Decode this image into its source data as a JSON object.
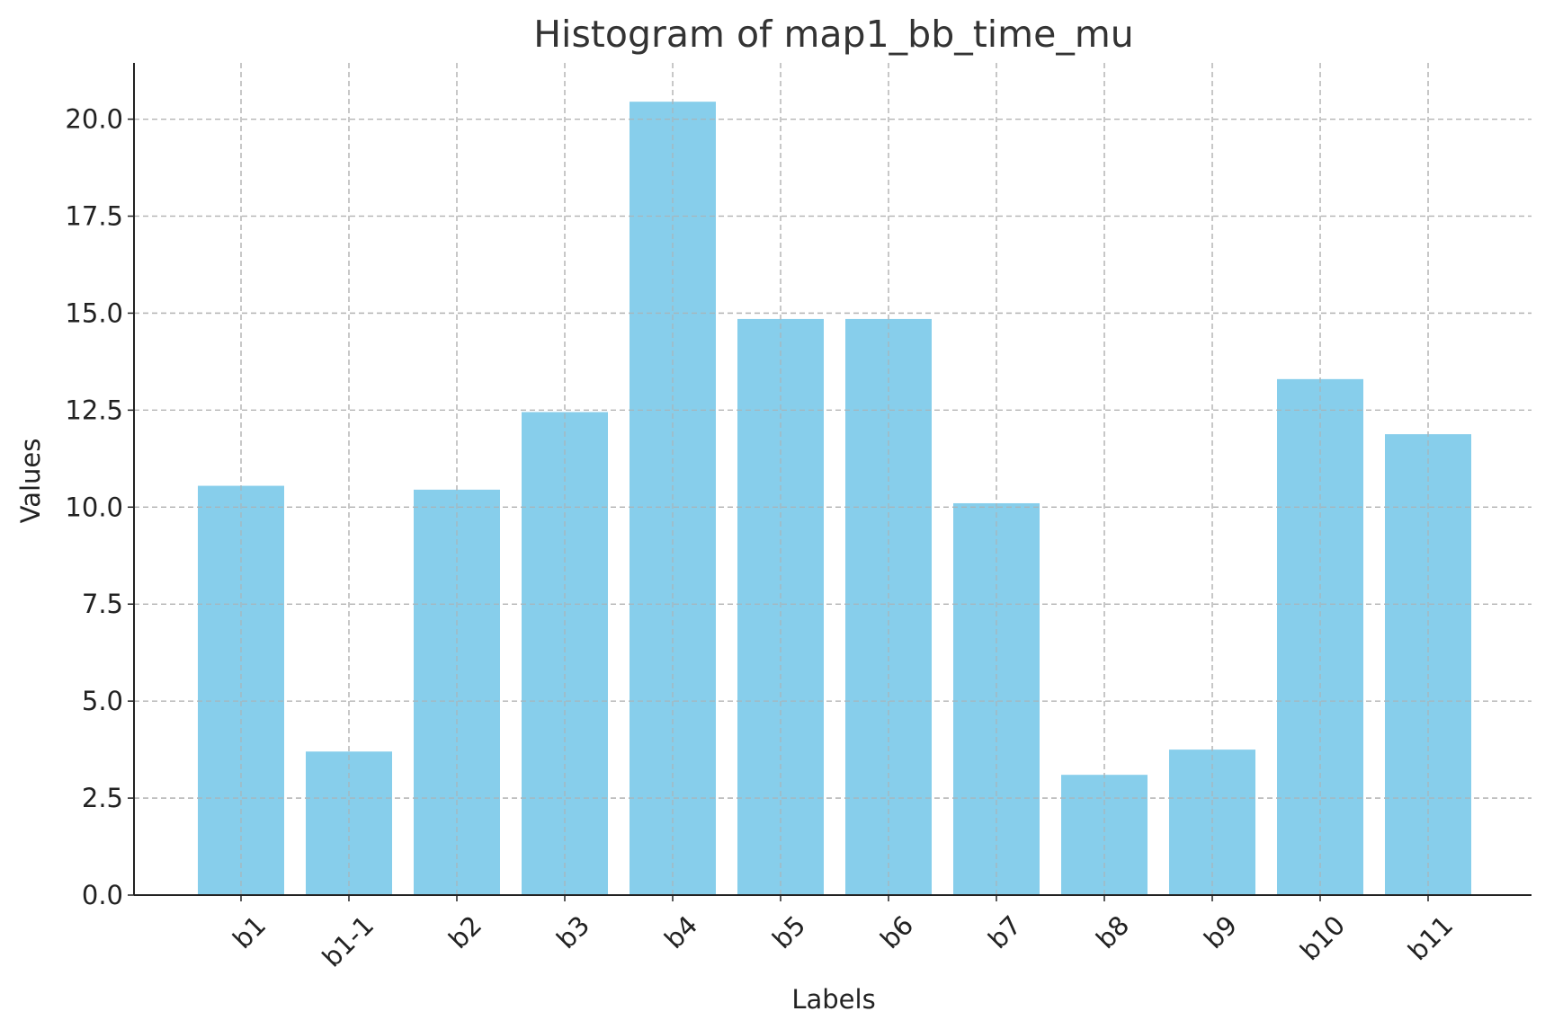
{
  "chart_data": {
    "type": "bar",
    "title": "Histogram of map1_bb_time_mu",
    "xlabel": "Labels",
    "ylabel": "Values",
    "categories": [
      "b1",
      "b1-1",
      "b2",
      "b3",
      "b4",
      "b5",
      "b6",
      "b7",
      "b8",
      "b9",
      "b10",
      "b11"
    ],
    "values": [
      10.55,
      3.7,
      10.45,
      12.45,
      20.45,
      14.85,
      14.85,
      10.1,
      3.1,
      3.75,
      13.3,
      11.88
    ],
    "ylim": [
      0,
      21.45
    ],
    "yticks": [
      0,
      2.5,
      5,
      7.5,
      10,
      12.5,
      15,
      17.5,
      20
    ],
    "ytick_labels": [
      "0.0",
      "2.5",
      "5.0",
      "7.5",
      "10.0",
      "12.5",
      "15.0",
      "17.5",
      "20.0"
    ],
    "grid": true,
    "x_tick_rotation": "45 degrees",
    "bar_color": "#87ceeb"
  }
}
